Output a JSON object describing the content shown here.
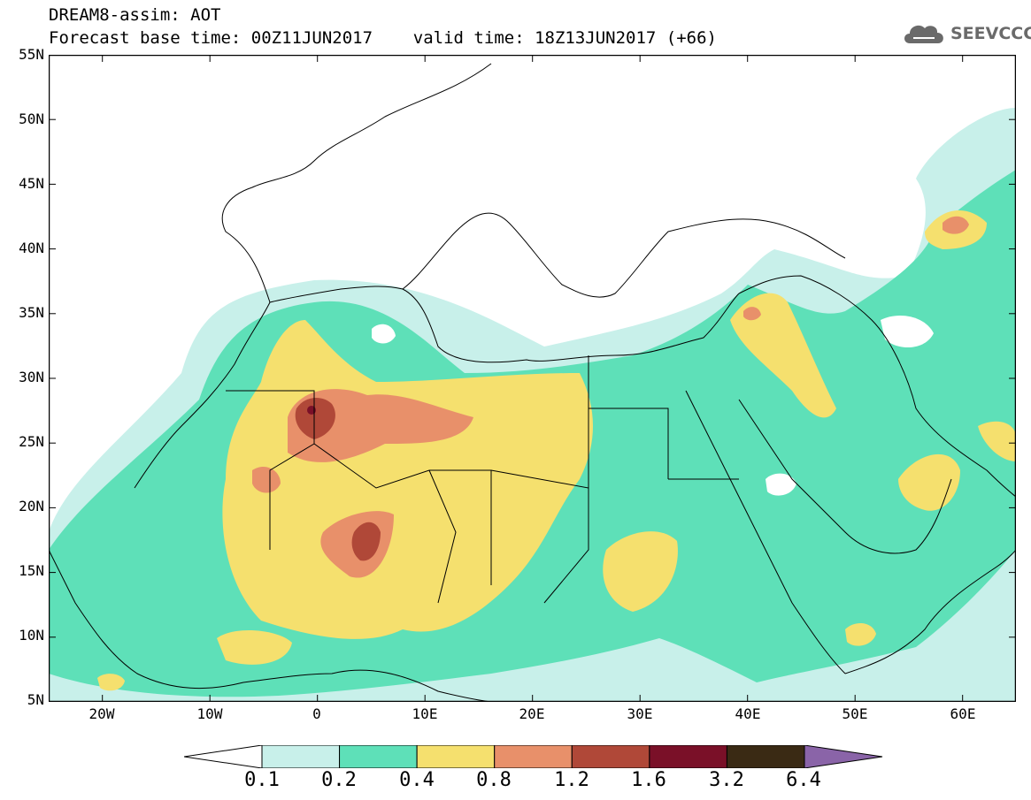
{
  "header": {
    "title_line1": "DREAM8-assim: AOT",
    "title_line2": "Forecast base time: 00Z11JUN2017    valid time: 18Z13JUN2017 (+66)"
  },
  "logo": {
    "text": "SEEVCCC",
    "icon": "cloud-icon",
    "color": "#6a6a6a"
  },
  "map": {
    "lat_labels": [
      "55N",
      "50N",
      "45N",
      "40N",
      "35N",
      "30N",
      "25N",
      "20N",
      "15N",
      "10N",
      "5N"
    ],
    "lon_labels": [
      "20W",
      "10W",
      "0",
      "10E",
      "20E",
      "30E",
      "40E",
      "50E",
      "60E"
    ]
  },
  "legend": {
    "bins": [
      {
        "color": "#c8f0ea"
      },
      {
        "color": "#5ee0b8"
      },
      {
        "color": "#f5e06e"
      },
      {
        "color": "#e8906a"
      },
      {
        "color": "#b04838"
      },
      {
        "color": "#7a1028"
      },
      {
        "color": "#3a2a14"
      }
    ],
    "over_color": "#8a64a8",
    "under_color": "#ffffff",
    "labels": [
      "0.1",
      "0.2",
      "0.4",
      "0.8",
      "1.2",
      "1.6",
      "3.2",
      "6.4"
    ]
  },
  "colors": {
    "c01": "#c8f0ea",
    "c02": "#5ee0b8",
    "c04": "#f5e06e",
    "c08": "#e8906a",
    "c12": "#b04838",
    "c16": "#7a1028"
  }
}
